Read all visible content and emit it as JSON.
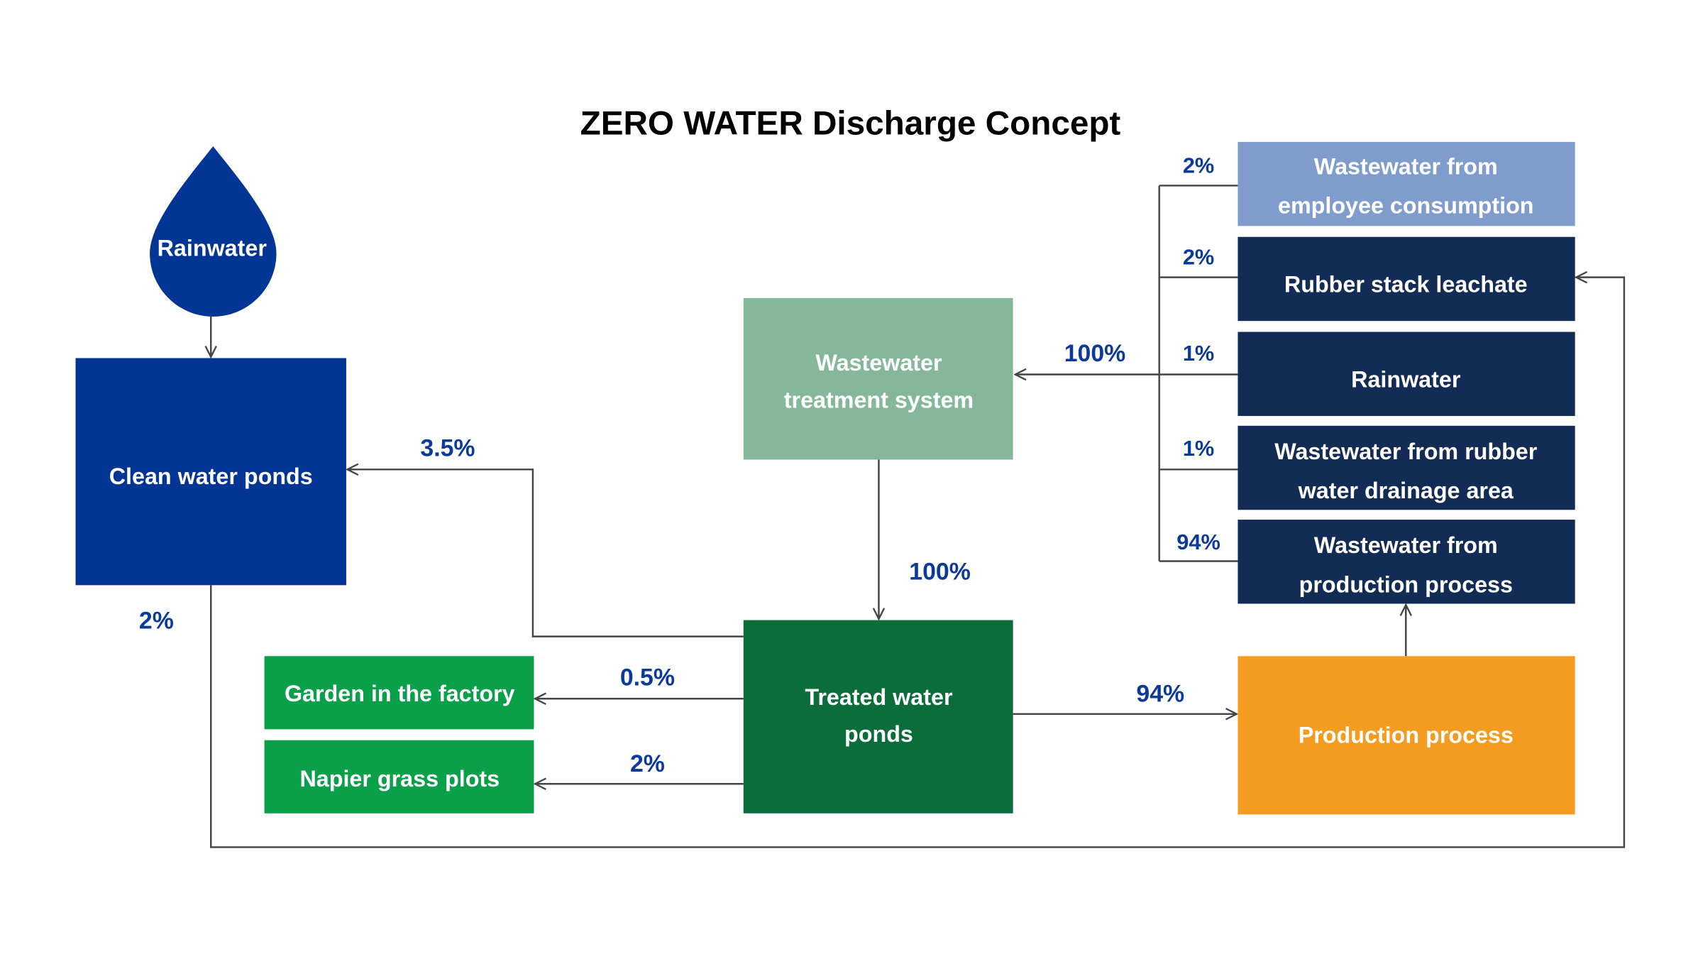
{
  "title": "ZERO WATER Discharge Concept",
  "nodes": {
    "rainwater_drop": "Rainwater",
    "clean_water_ponds": "Clean water ponds",
    "wastewater_treatment": [
      "Wastewater",
      "treatment system"
    ],
    "treated_water_ponds": [
      "Treated water",
      "ponds"
    ],
    "garden": "Garden in the factory",
    "napier": "Napier grass plots",
    "production_process": "Production process",
    "employee_consumption": [
      "Wastewater from",
      "employee consumption"
    ],
    "rubber_stack": "Rubber stack leachate",
    "rainwater_source": "Rainwater",
    "rubber_drainage": [
      "Wastewater from rubber",
      "water drainage area"
    ],
    "production_wastewater": [
      "Wastewater from",
      "production process"
    ]
  },
  "flows": {
    "employee_pct": "2%",
    "rubber_stack_pct": "2%",
    "rainwater_pct": "1%",
    "drainage_pct": "1%",
    "production_ww_pct": "94%",
    "to_treatment_pct": "100%",
    "treatment_to_ponds_pct": "100%",
    "to_clean_pct": "3.5%",
    "to_garden_pct": "0.5%",
    "to_napier_pct": "2%",
    "to_production_pct": "94%",
    "clean_to_rubber_pct": "2%"
  },
  "colors": {
    "clean": "#033594",
    "treatment": "#85b89a",
    "treated": "#0b6e3a",
    "green": "#0aa04a",
    "production": "#f39c1f",
    "employee": "#7f9ccc",
    "dark": "#132c55",
    "label": "#0b3a9a"
  }
}
